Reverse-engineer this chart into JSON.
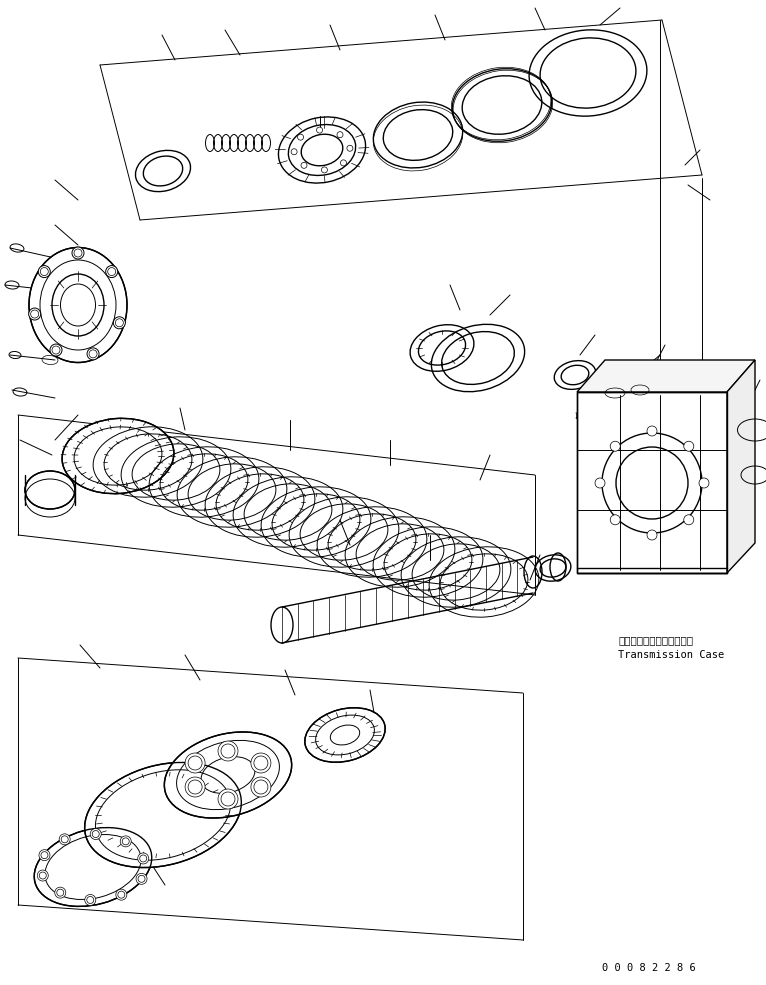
{
  "background_color": "#ffffff",
  "line_color": "#000000",
  "figure_width": 7.66,
  "figure_height": 9.85,
  "dpi": 100,
  "part_number": "0 0 0 8 2 2 8 6",
  "label_japanese": "トランスミッションケース",
  "label_english": "Transmission Case",
  "font_family": "monospace"
}
